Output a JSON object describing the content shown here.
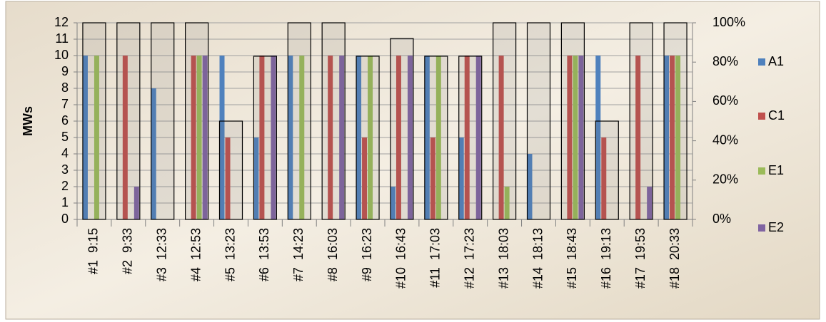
{
  "chart_data": {
    "type": "bar",
    "y_label": "MWs",
    "categories": [
      "#1  9:15",
      "#2  9:33",
      "#3  12:33",
      "#4  12:53",
      "#5  13:23",
      "#6  13:53",
      "#7  14:23",
      "#8  16:03",
      "#9  16:23",
      "#10  16:43",
      "#11  17:03",
      "#12  17:23",
      "#13  18:03",
      "#14  18:13",
      "#15  18:43",
      "#16  19:13",
      "#17  19:53",
      "#18  20:33"
    ],
    "series": [
      {
        "name": "A1",
        "color": "#4f81bd",
        "values": [
          10,
          0,
          8,
          0,
          10,
          5,
          10,
          0,
          10,
          2,
          10,
          5,
          0,
          4,
          0,
          10,
          0,
          10
        ]
      },
      {
        "name": "C1",
        "color": "#c0504d",
        "values": [
          0,
          10,
          0,
          10,
          5,
          10,
          0,
          10,
          5,
          10,
          5,
          10,
          10,
          0,
          10,
          5,
          10,
          10
        ]
      },
      {
        "name": "E1",
        "color": "#9bbb59",
        "values": [
          10,
          0,
          0,
          10,
          0,
          0,
          10,
          0,
          10,
          0,
          10,
          0,
          2,
          0,
          10,
          0,
          0,
          10
        ]
      },
      {
        "name": "E2",
        "color": "#8064a2",
        "values": [
          0,
          2,
          0,
          10,
          0,
          10,
          0,
          10,
          0,
          10,
          0,
          10,
          0,
          0,
          10,
          0,
          2,
          0
        ]
      },
      {
        "axis": "y2",
        "color": "#000000",
        "values": [
          100,
          100,
          100,
          100,
          50,
          83,
          100,
          100,
          83,
          92,
          83,
          83,
          100,
          100,
          100,
          50,
          100,
          100
        ]
      }
    ],
    "ylim": [
      0,
      12
    ],
    "yticks": [
      0,
      1,
      2,
      3,
      4,
      5,
      6,
      7,
      8,
      9,
      10,
      11,
      12
    ],
    "y2lim": [
      0,
      100
    ],
    "y2ticks": [
      {
        "value": 0,
        "label": "0%"
      },
      {
        "value": 20,
        "label": "20%"
      },
      {
        "value": 40,
        "label": "40%"
      },
      {
        "value": 60,
        "label": "60%"
      },
      {
        "value": 80,
        "label": "80%"
      },
      {
        "value": 100,
        "label": "100%"
      }
    ],
    "grid": true,
    "legend": "right"
  }
}
